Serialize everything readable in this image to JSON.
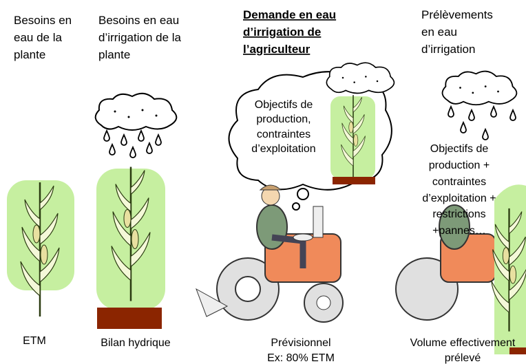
{
  "columns": [
    {
      "header": [
        "Besoins en",
        "eau de la",
        "plante"
      ],
      "footer": [
        "ETM"
      ]
    },
    {
      "header": [
        "Besoins en eau",
        "d’irrigation de la",
        "plante"
      ],
      "footer": [
        "Bilan hydrique"
      ]
    },
    {
      "header": [
        "Demande en eau",
        "d’irrigation de",
        "l’agriculteur"
      ],
      "footer": [
        "Prévisionnel",
        "Ex: 80% ETM"
      ]
    },
    {
      "header": [
        "Prélèvements",
        "en eau",
        "d’irrigation"
      ],
      "footer": [
        "Volume effectivement",
        "prélevé"
      ]
    }
  ],
  "bubble": [
    "Objectifs de",
    "production,",
    "contraintes",
    "d’exploitation"
  ],
  "constraints": [
    "Objectifs de",
    "production +",
    "contraintes",
    "d’exploitation +",
    "restrictions",
    "+pannes…"
  ]
}
